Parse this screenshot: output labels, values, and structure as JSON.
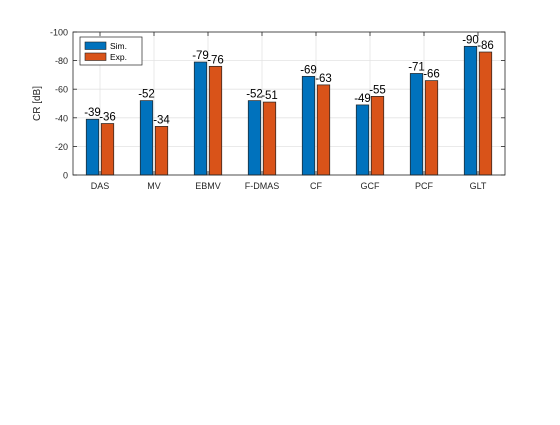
{
  "chart_data": {
    "type": "bar",
    "title": "",
    "xlabel": "",
    "ylabel": "CR [dB]",
    "categories": [
      "DAS",
      "MV",
      "EBMV",
      "F-DMAS",
      "CF",
      "GCF",
      "PCF",
      "GLT"
    ],
    "series": [
      {
        "name": "Sim.",
        "color": "#0072BD",
        "values": [
          -39,
          -52,
          -79,
          -52,
          -69,
          -49,
          -71,
          -90
        ]
      },
      {
        "name": "Exp.",
        "color": "#D95319",
        "values": [
          -36,
          -34,
          -76,
          -51,
          -63,
          -55,
          -66,
          -86
        ]
      }
    ],
    "ylim": [
      0,
      -100
    ],
    "y_direction": "reversed",
    "yticks": [
      0,
      -20,
      -40,
      -60,
      -80,
      -100
    ],
    "ytick_labels": [
      "0",
      "-20",
      "-40",
      "-60",
      "-80",
      "-100"
    ],
    "grid": true,
    "legend_position": "top-left",
    "data_labels": true
  }
}
